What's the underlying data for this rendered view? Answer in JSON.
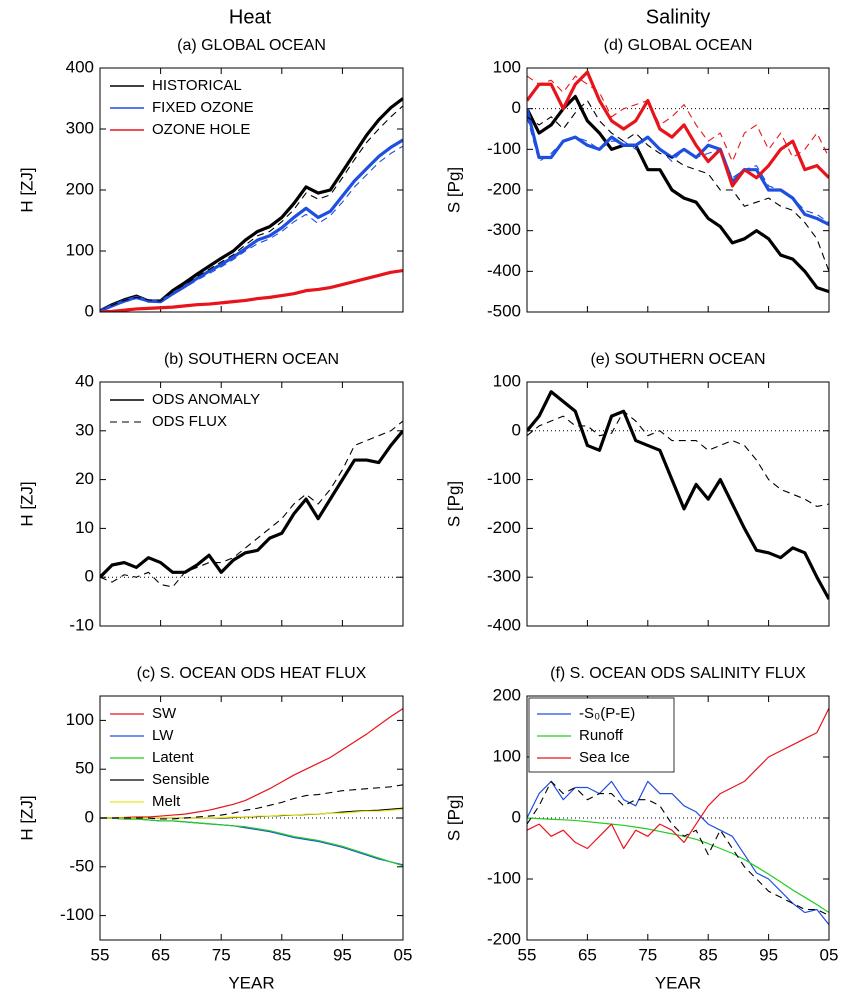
{
  "columns": [
    "Heat",
    "Salinity"
  ],
  "chart_data": [
    {
      "type": "line",
      "title": "(a) GLOBAL OCEAN",
      "ylabel": "H [ZJ]",
      "x": [
        1955,
        1957,
        1959,
        1961,
        1963,
        1965,
        1967,
        1969,
        1971,
        1973,
        1975,
        1977,
        1979,
        1981,
        1983,
        1985,
        1987,
        1989,
        1991,
        1993,
        1995,
        1997,
        1999,
        2001,
        2003,
        2005
      ],
      "xlim": [
        1955,
        2005
      ],
      "xticks": [
        1955,
        1965,
        1975,
        1985,
        1995,
        2005
      ],
      "ylim": [
        0,
        400
      ],
      "yticks": [
        0,
        100,
        200,
        300,
        400
      ],
      "legend": "upper left",
      "series": [
        {
          "name": "HISTORICAL",
          "color": "#000000",
          "line": "thick",
          "values": [
            2,
            12,
            20,
            26,
            18,
            18,
            35,
            48,
            62,
            75,
            88,
            100,
            118,
            132,
            140,
            155,
            178,
            205,
            195,
            200,
            230,
            260,
            290,
            315,
            335,
            350
          ]
        },
        {
          "name": "FIXED OZONE",
          "color": "#1f4fe0",
          "line": "thick",
          "values": [
            2,
            10,
            18,
            24,
            18,
            17,
            30,
            42,
            55,
            67,
            78,
            90,
            104,
            118,
            125,
            138,
            155,
            170,
            155,
            165,
            190,
            215,
            235,
            255,
            270,
            282
          ]
        },
        {
          "name": "OZONE HOLE",
          "color": "#e8141c",
          "line": "thick",
          "values": [
            0,
            1,
            3,
            5,
            6,
            7,
            8,
            10,
            12,
            13,
            15,
            17,
            19,
            22,
            24,
            27,
            30,
            35,
            37,
            40,
            45,
            50,
            55,
            60,
            65,
            68
          ]
        },
        {
          "color": "#000000",
          "line": "dashed",
          "values": [
            2,
            11,
            19,
            24,
            20,
            18,
            33,
            45,
            58,
            70,
            82,
            94,
            110,
            125,
            132,
            148,
            168,
            195,
            185,
            192,
            220,
            250,
            278,
            300,
            320,
            338
          ]
        },
        {
          "color": "#1f4fe0",
          "line": "dashed",
          "values": [
            2,
            9,
            16,
            22,
            17,
            16,
            28,
            40,
            52,
            63,
            74,
            86,
            100,
            112,
            120,
            132,
            148,
            160,
            145,
            158,
            180,
            205,
            225,
            245,
            260,
            272
          ]
        }
      ]
    },
    {
      "type": "line",
      "title": "(b) SOUTHERN OCEAN",
      "ylabel": "H [ZJ]",
      "x": [
        1955,
        1957,
        1959,
        1961,
        1963,
        1965,
        1967,
        1969,
        1971,
        1973,
        1975,
        1977,
        1979,
        1981,
        1983,
        1985,
        1987,
        1989,
        1991,
        1993,
        1995,
        1997,
        1999,
        2001,
        2003,
        2005
      ],
      "xlim": [
        1955,
        2005
      ],
      "xticks": [
        1955,
        1965,
        1975,
        1985,
        1995,
        2005
      ],
      "ylim": [
        -10,
        40
      ],
      "yticks": [
        -10,
        0,
        10,
        20,
        30,
        40
      ],
      "legend": "upper left",
      "zero_line": true,
      "series": [
        {
          "name": "ODS ANOMALY",
          "color": "#000000",
          "line": "thick",
          "values": [
            0,
            2.5,
            3,
            2,
            4,
            3,
            1,
            1,
            2.5,
            4.5,
            1,
            3.5,
            5,
            5.5,
            8,
            9,
            13,
            16,
            12,
            16,
            20,
            24,
            24,
            23.5,
            27,
            30
          ]
        },
        {
          "name": "ODS FLUX",
          "color": "#000000",
          "line": "dashed",
          "values": [
            0,
            -1,
            0.5,
            0,
            1,
            -1.5,
            -2,
            1,
            2,
            3,
            3,
            4,
            6,
            8,
            10,
            12,
            15,
            17,
            15,
            18,
            22,
            27,
            28,
            29,
            30,
            32
          ]
        }
      ]
    },
    {
      "type": "line",
      "title": "(c) S. OCEAN ODS HEAT FLUX",
      "ylabel": "H [ZJ]",
      "xlabel": "YEAR",
      "x": [
        1955,
        1957,
        1959,
        1961,
        1963,
        1965,
        1967,
        1969,
        1971,
        1973,
        1975,
        1977,
        1979,
        1981,
        1983,
        1985,
        1987,
        1989,
        1991,
        1993,
        1995,
        1997,
        1999,
        2001,
        2003,
        2005
      ],
      "xlim": [
        1955,
        2005
      ],
      "xticks": [
        {
          "value": 1955,
          "label": "55"
        },
        {
          "value": 1965,
          "label": "65"
        },
        {
          "value": 1975,
          "label": "75"
        },
        {
          "value": 1985,
          "label": "85"
        },
        {
          "value": 1995,
          "label": "95"
        },
        {
          "value": 2005,
          "label": "05"
        }
      ],
      "ylim": [
        -125,
        125
      ],
      "yticks": [
        -100,
        -50,
        0,
        50,
        100
      ],
      "legend": "upper left",
      "zero_line": true,
      "series": [
        {
          "name": "SW",
          "color": "#e8141c",
          "line": "thin",
          "values": [
            0,
            0,
            0.5,
            1,
            1,
            2,
            3,
            4,
            6,
            8,
            11,
            14,
            18,
            24,
            30,
            37,
            44,
            50,
            56,
            62,
            70,
            78,
            86,
            95,
            104,
            112
          ]
        },
        {
          "name": "LW",
          "color": "#1f4fe0",
          "line": "thin",
          "values": [
            0,
            0,
            -1,
            -1,
            -2,
            -3,
            -3,
            -4,
            -5,
            -6,
            -7,
            -8,
            -10,
            -12,
            -14,
            -17,
            -20,
            -22,
            -24,
            -27,
            -30,
            -34,
            -38,
            -42,
            -45,
            -48
          ]
        },
        {
          "name": "Latent",
          "color": "#22cc22",
          "line": "thin",
          "values": [
            0,
            0,
            -1,
            -1,
            -2,
            -3,
            -3,
            -4,
            -5,
            -6,
            -7,
            -8,
            -9,
            -11,
            -13,
            -16,
            -19,
            -21,
            -23,
            -26,
            -29,
            -33,
            -37,
            -41,
            -45,
            -49
          ]
        },
        {
          "name": "Sensible",
          "color": "#000000",
          "line": "thin",
          "values": [
            0,
            0,
            0,
            0,
            0,
            0,
            0,
            0,
            0,
            0,
            0,
            0.5,
            1,
            1.5,
            2,
            2.5,
            3,
            3.5,
            4,
            5,
            6,
            7,
            7.5,
            8,
            9,
            10
          ]
        },
        {
          "name": "Melt",
          "color": "#e8e820",
          "line": "thin",
          "values": [
            0,
            0,
            0,
            0,
            0,
            0,
            0,
            0,
            0,
            0,
            0.5,
            1,
            1,
            2,
            2,
            3,
            3,
            4,
            4,
            5,
            5,
            6,
            7,
            7,
            8,
            9
          ]
        },
        {
          "color": "#000000",
          "line": "dashed",
          "values": [
            0,
            0,
            0,
            0,
            0,
            -1,
            -1,
            0,
            1,
            2,
            3,
            5,
            8,
            10,
            13,
            16,
            20,
            23,
            24,
            26,
            28,
            29,
            30,
            31,
            32,
            34
          ]
        }
      ]
    },
    {
      "type": "line",
      "title": "(d) GLOBAL OCEAN",
      "ylabel": "S [Pg]",
      "x": [
        1955,
        1957,
        1959,
        1961,
        1963,
        1965,
        1967,
        1969,
        1971,
        1973,
        1975,
        1977,
        1979,
        1981,
        1983,
        1985,
        1987,
        1989,
        1991,
        1993,
        1995,
        1997,
        1999,
        2001,
        2003,
        2005
      ],
      "xlim": [
        1955,
        2005
      ],
      "xticks": [
        1955,
        1965,
        1975,
        1985,
        1995,
        2005
      ],
      "ylim": [
        -500,
        100
      ],
      "yticks": [
        -500,
        -400,
        -300,
        -200,
        -100,
        0,
        100
      ],
      "zero_line": true,
      "series": [
        {
          "color": "#000000",
          "line": "thick",
          "values": [
            0,
            -60,
            -40,
            0,
            30,
            -30,
            -60,
            -100,
            -90,
            -90,
            -150,
            -150,
            -200,
            -220,
            -230,
            -270,
            -290,
            -330,
            -320,
            -300,
            -320,
            -360,
            -370,
            -400,
            -440,
            -450
          ]
        },
        {
          "color": "#1f4fe0",
          "line": "thick",
          "values": [
            0,
            -120,
            -120,
            -80,
            -70,
            -90,
            -100,
            -70,
            -90,
            -90,
            -70,
            -100,
            -120,
            -100,
            -120,
            -90,
            -100,
            -180,
            -150,
            -150,
            -200,
            -200,
            -220,
            -260,
            -270,
            -285
          ]
        },
        {
          "color": "#e8141c",
          "line": "thick",
          "values": [
            20,
            60,
            60,
            0,
            60,
            90,
            20,
            -30,
            -50,
            -30,
            20,
            -50,
            -70,
            -40,
            -90,
            -130,
            -100,
            -190,
            -150,
            -170,
            -140,
            -100,
            -80,
            -150,
            -140,
            -170
          ]
        },
        {
          "color": "#000000",
          "line": "dashed",
          "values": [
            -20,
            -40,
            -20,
            -50,
            -10,
            20,
            -30,
            -60,
            -80,
            -60,
            -90,
            -110,
            -120,
            -140,
            -150,
            -160,
            -200,
            -200,
            -240,
            -230,
            -220,
            -240,
            -250,
            -280,
            -320,
            -400
          ]
        },
        {
          "color": "#1f4fe0",
          "line": "dashed",
          "values": [
            -20,
            -130,
            -110,
            -80,
            -70,
            -80,
            -100,
            -80,
            -80,
            -100,
            -70,
            -100,
            -130,
            -100,
            -120,
            -110,
            -100,
            -170,
            -150,
            -140,
            -190,
            -200,
            -220,
            -250,
            -260,
            -280
          ]
        },
        {
          "color": "#e8141c",
          "line": "dashed",
          "values": [
            80,
            60,
            70,
            40,
            80,
            60,
            40,
            -20,
            0,
            10,
            20,
            -40,
            -20,
            10,
            -40,
            -80,
            -60,
            -130,
            -60,
            -40,
            -100,
            -60,
            -120,
            -100,
            -60,
            -120
          ]
        }
      ]
    },
    {
      "type": "line",
      "title": "(e) SOUTHERN OCEAN",
      "ylabel": "S [Pg]",
      "x": [
        1955,
        1957,
        1959,
        1961,
        1963,
        1965,
        1967,
        1969,
        1971,
        1973,
        1975,
        1977,
        1979,
        1981,
        1983,
        1985,
        1987,
        1989,
        1991,
        1993,
        1995,
        1997,
        1999,
        2001,
        2003,
        2005
      ],
      "xlim": [
        1955,
        2005
      ],
      "xticks": [
        1955,
        1965,
        1975,
        1985,
        1995,
        2005
      ],
      "ylim": [
        -400,
        100
      ],
      "yticks": [
        -400,
        -300,
        -200,
        -100,
        0,
        100
      ],
      "zero_line": true,
      "series": [
        {
          "color": "#000000",
          "line": "thick",
          "values": [
            0,
            30,
            80,
            60,
            40,
            -30,
            -40,
            30,
            40,
            -20,
            -30,
            -40,
            -100,
            -160,
            -110,
            -140,
            -100,
            -150,
            -200,
            -245,
            -250,
            -260,
            -240,
            -250,
            -300,
            -345
          ]
        },
        {
          "color": "#000000",
          "line": "dashed",
          "values": [
            -10,
            10,
            20,
            30,
            10,
            10,
            -10,
            -5,
            40,
            20,
            -10,
            0,
            -20,
            -20,
            -20,
            -40,
            -30,
            -20,
            -30,
            -60,
            -100,
            -120,
            -130,
            -140,
            -155,
            -150
          ]
        }
      ]
    },
    {
      "type": "line",
      "title": "(f) S. OCEAN ODS SALINITY FLUX",
      "ylabel": "S [Pg]",
      "xlabel": "YEAR",
      "x": [
        1955,
        1957,
        1959,
        1961,
        1963,
        1965,
        1967,
        1969,
        1971,
        1973,
        1975,
        1977,
        1979,
        1981,
        1983,
        1985,
        1987,
        1989,
        1991,
        1993,
        1995,
        1997,
        1999,
        2001,
        2003,
        2005
      ],
      "xlim": [
        1955,
        2005
      ],
      "xticks": [
        {
          "value": 1955,
          "label": "55"
        },
        {
          "value": 1965,
          "label": "65"
        },
        {
          "value": 1975,
          "label": "75"
        },
        {
          "value": 1985,
          "label": "85"
        },
        {
          "value": 1995,
          "label": "95"
        },
        {
          "value": 2005,
          "label": "05"
        }
      ],
      "ylim": [
        -200,
        200
      ],
      "yticks": [
        -200,
        -100,
        0,
        100,
        200
      ],
      "legend": "upper left",
      "legend_frame": true,
      "zero_line": true,
      "series": [
        {
          "name": "-S₀(P-E)",
          "color": "#1f4fe0",
          "line": "thin",
          "values": [
            0,
            40,
            60,
            30,
            50,
            50,
            40,
            60,
            30,
            20,
            60,
            40,
            40,
            20,
            10,
            -10,
            -20,
            -30,
            -60,
            -90,
            -100,
            -120,
            -140,
            -155,
            -150,
            -175
          ]
        },
        {
          "name": "Runoff",
          "color": "#22cc22",
          "line": "thin",
          "values": [
            0,
            -1,
            -2,
            -3,
            -4,
            -6,
            -8,
            -10,
            -12,
            -15,
            -18,
            -22,
            -26,
            -30,
            -35,
            -42,
            -50,
            -58,
            -68,
            -80,
            -92,
            -105,
            -118,
            -130,
            -142,
            -155
          ]
        },
        {
          "name": "Sea Ice",
          "color": "#e8141c",
          "line": "thin",
          "values": [
            -20,
            -10,
            -30,
            -20,
            -40,
            -50,
            -30,
            -10,
            -50,
            -20,
            -30,
            -10,
            -20,
            -40,
            -10,
            20,
            40,
            50,
            60,
            80,
            100,
            110,
            120,
            130,
            140,
            180
          ]
        },
        {
          "color": "#000000",
          "line": "dashed",
          "values": [
            -10,
            20,
            60,
            40,
            50,
            30,
            40,
            40,
            20,
            30,
            30,
            20,
            -10,
            -30,
            -20,
            -60,
            -20,
            -50,
            -80,
            -100,
            -120,
            -130,
            -140,
            -150,
            -150,
            -160
          ]
        }
      ]
    }
  ]
}
